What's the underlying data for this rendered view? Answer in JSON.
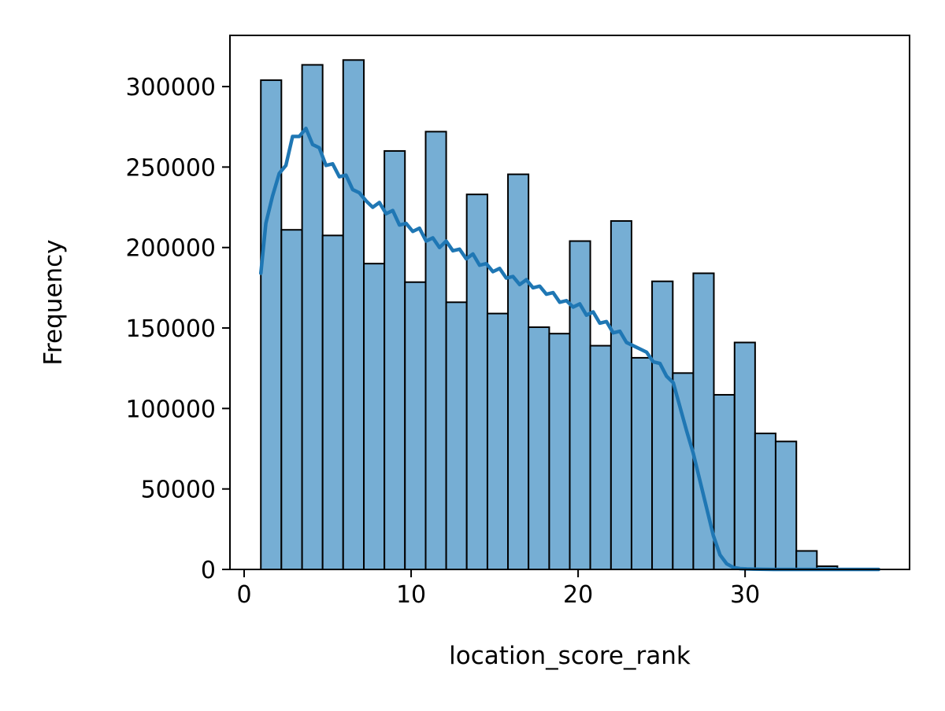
{
  "chart_data": {
    "type": "bar",
    "title": "",
    "xlabel": "location_score_rank",
    "ylabel": "Frequency",
    "xlim": [
      -0.85,
      39.85
    ],
    "ylim": [
      0,
      331800
    ],
    "x_ticks": [
      0,
      10,
      20,
      30
    ],
    "y_ticks": [
      0,
      50000,
      100000,
      150000,
      200000,
      250000,
      300000
    ],
    "grid": false,
    "legend": "none",
    "bar_color": "#76aed4",
    "bar_edge_color": "#000000",
    "kde_color": "#1f77b4",
    "bins": [
      {
        "x0": 1.0,
        "x1": 2.23,
        "count": 304000
      },
      {
        "x0": 2.23,
        "x1": 3.47,
        "count": 211000
      },
      {
        "x0": 3.47,
        "x1": 4.7,
        "count": 313500
      },
      {
        "x0": 4.7,
        "x1": 5.93,
        "count": 207500
      },
      {
        "x0": 5.93,
        "x1": 7.17,
        "count": 316500
      },
      {
        "x0": 7.17,
        "x1": 8.4,
        "count": 190000
      },
      {
        "x0": 8.4,
        "x1": 9.63,
        "count": 260000
      },
      {
        "x0": 9.63,
        "x1": 10.87,
        "count": 178500
      },
      {
        "x0": 10.87,
        "x1": 12.1,
        "count": 272000
      },
      {
        "x0": 12.1,
        "x1": 13.33,
        "count": 166000
      },
      {
        "x0": 13.33,
        "x1": 14.57,
        "count": 233000
      },
      {
        "x0": 14.57,
        "x1": 15.8,
        "count": 159000
      },
      {
        "x0": 15.8,
        "x1": 17.03,
        "count": 245500
      },
      {
        "x0": 17.03,
        "x1": 18.27,
        "count": 150500
      },
      {
        "x0": 18.27,
        "x1": 19.5,
        "count": 146500
      },
      {
        "x0": 19.5,
        "x1": 20.73,
        "count": 204000
      },
      {
        "x0": 20.73,
        "x1": 21.97,
        "count": 139000
      },
      {
        "x0": 21.97,
        "x1": 23.2,
        "count": 216500
      },
      {
        "x0": 23.2,
        "x1": 24.43,
        "count": 131500
      },
      {
        "x0": 24.43,
        "x1": 25.67,
        "count": 179000
      },
      {
        "x0": 25.67,
        "x1": 26.9,
        "count": 122000
      },
      {
        "x0": 26.9,
        "x1": 28.13,
        "count": 184000
      },
      {
        "x0": 28.13,
        "x1": 29.37,
        "count": 108500
      },
      {
        "x0": 29.37,
        "x1": 30.6,
        "count": 141000
      },
      {
        "x0": 30.6,
        "x1": 31.83,
        "count": 84500
      },
      {
        "x0": 31.83,
        "x1": 33.07,
        "count": 79500
      },
      {
        "x0": 33.07,
        "x1": 34.3,
        "count": 11500
      },
      {
        "x0": 34.3,
        "x1": 35.53,
        "count": 2000
      },
      {
        "x0": 35.53,
        "x1": 36.77,
        "count": 500
      },
      {
        "x0": 36.77,
        "x1": 38.0,
        "count": 200
      }
    ],
    "kde": {
      "x": [
        1.0,
        1.3,
        1.7,
        2.1,
        2.5,
        2.9,
        3.3,
        3.7,
        4.1,
        4.5,
        4.9,
        5.3,
        5.7,
        6.1,
        6.5,
        6.9,
        7.3,
        7.7,
        8.1,
        8.5,
        8.9,
        9.3,
        9.7,
        10.1,
        10.5,
        10.9,
        11.3,
        11.7,
        12.1,
        12.5,
        12.9,
        13.3,
        13.7,
        14.1,
        14.5,
        14.9,
        15.3,
        15.7,
        16.1,
        16.5,
        16.9,
        17.3,
        17.7,
        18.1,
        18.5,
        18.9,
        19.3,
        19.7,
        20.1,
        20.5,
        20.9,
        21.3,
        21.7,
        22.1,
        22.5,
        22.9,
        23.3,
        23.7,
        24.1,
        24.5,
        24.9,
        25.3,
        25.7,
        26.1,
        26.5,
        26.9,
        27.3,
        27.7,
        28.1,
        28.5,
        28.9,
        29.3,
        29.7,
        30.1,
        30.5,
        30.9,
        31.3,
        31.7,
        32.1,
        32.5,
        32.9,
        33.3,
        33.7,
        34.1,
        34.5,
        34.9,
        35.3,
        35.7,
        36.1,
        36.5,
        36.9,
        37.3,
        37.7,
        38.0
      ],
      "y": [
        184000,
        215000,
        232000,
        246000,
        251000,
        269000,
        269000,
        274000,
        264000,
        262000,
        251000,
        252000,
        244000,
        245000,
        236000,
        234000,
        229000,
        225000,
        228000,
        221000,
        223000,
        214000,
        215000,
        210000,
        212000,
        204000,
        206000,
        200000,
        204000,
        198000,
        199000,
        193000,
        196000,
        189000,
        190000,
        185000,
        187000,
        181000,
        182000,
        177000,
        180000,
        175000,
        176000,
        171000,
        172000,
        166000,
        167000,
        163000,
        165000,
        158000,
        160000,
        153000,
        154000,
        147000,
        148000,
        141000,
        139000,
        137000,
        135000,
        129000,
        128000,
        120000,
        116000,
        101000,
        86000,
        72000,
        55000,
        38000,
        21000,
        9000,
        3500,
        1200,
        500,
        300,
        200,
        100,
        50,
        20,
        10,
        5,
        0,
        0,
        0,
        0,
        0,
        0,
        0,
        0,
        0,
        0,
        0,
        0,
        0,
        0
      ]
    }
  }
}
